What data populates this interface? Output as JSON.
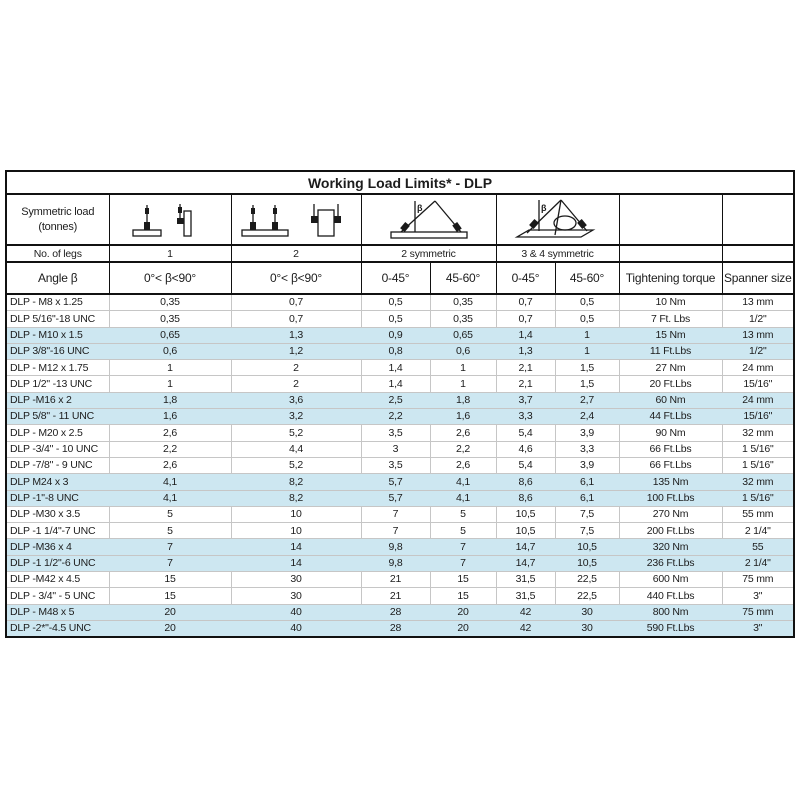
{
  "title": "Working Load Limits* - DLP",
  "header": {
    "load_label_line1": "Symmetric load",
    "load_label_line2": "(tonnes)",
    "legs_row_label": "No. of legs",
    "angle_row_label": "Angle β",
    "legs": {
      "one": "1",
      "two": "2",
      "two_sym": "2 symmetric",
      "three_four_sym": "3 & 4 symmetric"
    },
    "angles": [
      "0°< β<90°",
      "0°< β<90°",
      "0-45°",
      "45-60°",
      "0-45°",
      "45-60°"
    ],
    "torque_label": "Tightening torque",
    "spanner_label": "Spanner size",
    "icons": {
      "one_leg": "one-leg-lifting-point-icon",
      "two_legs": "two-leg-lifting-point-icon",
      "two_symmetric": "two-leg-symmetric-sling-icon",
      "three_four_symmetric": "three-four-leg-symmetric-sling-icon"
    }
  },
  "colors": {
    "highlight_row": "#cde7f1",
    "header_border": "#111111",
    "data_border": "#c6c6c6"
  },
  "rows": [
    {
      "model": "DLP - M8 x 1.25",
      "values": [
        "0,35",
        "0,7",
        "0,5",
        "0,35",
        "0,7",
        "0,5",
        "10 Nm",
        "13 mm"
      ],
      "highlight": false
    },
    {
      "model": "DLP 5/16\"-18 UNC",
      "values": [
        "0,35",
        "0,7",
        "0,5",
        "0,35",
        "0,7",
        "0,5",
        "7 Ft. Lbs",
        "1/2\""
      ],
      "highlight": false
    },
    {
      "model": "DLP - M10 x 1.5",
      "values": [
        "0,65",
        "1,3",
        "0,9",
        "0,65",
        "1,4",
        "1",
        "15 Nm",
        "13 mm"
      ],
      "highlight": true
    },
    {
      "model": "DLP 3/8\"-16 UNC",
      "values": [
        "0,6",
        "1,2",
        "0,8",
        "0,6",
        "1,3",
        "1",
        "11 Ft.Lbs",
        "1/2\""
      ],
      "highlight": true
    },
    {
      "model": "DLP - M12 x 1.75",
      "values": [
        "1",
        "2",
        "1,4",
        "1",
        "2,1",
        "1,5",
        "27 Nm",
        "24 mm"
      ],
      "highlight": false
    },
    {
      "model": "DLP 1/2\" -13 UNC",
      "values": [
        "1",
        "2",
        "1,4",
        "1",
        "2,1",
        "1,5",
        "20 Ft.Lbs",
        "15/16\""
      ],
      "highlight": false
    },
    {
      "model": "DLP -M16 x 2",
      "values": [
        "1,8",
        "3,6",
        "2,5",
        "1,8",
        "3,7",
        "2,7",
        "60 Nm",
        "24 mm"
      ],
      "highlight": true
    },
    {
      "model": "DLP 5/8\" - 11 UNC",
      "values": [
        "1,6",
        "3,2",
        "2,2",
        "1,6",
        "3,3",
        "2,4",
        "44 Ft.Lbs",
        "15/16\""
      ],
      "highlight": true
    },
    {
      "model": "DLP - M20 x 2.5",
      "values": [
        "2,6",
        "5,2",
        "3,5",
        "2,6",
        "5,4",
        "3,9",
        "90 Nm",
        "32 mm"
      ],
      "highlight": false
    },
    {
      "model": "DLP -3/4\" - 10 UNC",
      "values": [
        "2,2",
        "4,4",
        "3",
        "2,2",
        "4,6",
        "3,3",
        "66 Ft.Lbs",
        "1 5/16\""
      ],
      "highlight": false
    },
    {
      "model": "DLP -7/8\" - 9 UNC",
      "values": [
        "2,6",
        "5,2",
        "3,5",
        "2,6",
        "5,4",
        "3,9",
        "66 Ft.Lbs",
        "1 5/16\""
      ],
      "highlight": false
    },
    {
      "model": "DLP M24 x 3",
      "values": [
        "4,1",
        "8,2",
        "5,7",
        "4,1",
        "8,6",
        "6,1",
        "135 Nm",
        "32 mm"
      ],
      "highlight": true
    },
    {
      "model": "DLP -1\"-8 UNC",
      "values": [
        "4,1",
        "8,2",
        "5,7",
        "4,1",
        "8,6",
        "6,1",
        "100 Ft.Lbs",
        "1 5/16\""
      ],
      "highlight": true
    },
    {
      "model": "DLP -M30 x 3.5",
      "values": [
        "5",
        "10",
        "7",
        "5",
        "10,5",
        "7,5",
        "270 Nm",
        "55 mm"
      ],
      "highlight": false
    },
    {
      "model": "DLP -1 1/4\"-7 UNC",
      "values": [
        "5",
        "10",
        "7",
        "5",
        "10,5",
        "7,5",
        "200 Ft.Lbs",
        "2 1/4\""
      ],
      "highlight": false
    },
    {
      "model": "DLP -M36 x 4",
      "values": [
        "7",
        "14",
        "9,8",
        "7",
        "14,7",
        "10,5",
        "320 Nm",
        "55"
      ],
      "highlight": true
    },
    {
      "model": "DLP -1 1/2\"-6 UNC",
      "values": [
        "7",
        "14",
        "9,8",
        "7",
        "14,7",
        "10,5",
        "236 Ft.Lbs",
        "2 1/4\""
      ],
      "highlight": true
    },
    {
      "model": "DLP -M42 x 4.5",
      "values": [
        "15",
        "30",
        "21",
        "15",
        "31,5",
        "22,5",
        "600 Nm",
        "75 mm"
      ],
      "highlight": false
    },
    {
      "model": "DLP - 3/4\" - 5 UNC",
      "values": [
        "15",
        "30",
        "21",
        "15",
        "31,5",
        "22,5",
        "440 Ft.Lbs",
        "3\""
      ],
      "highlight": false
    },
    {
      "model": "DLP - M48 x 5",
      "values": [
        "20",
        "40",
        "28",
        "20",
        "42",
        "30",
        "800 Nm",
        "75 mm"
      ],
      "highlight": true
    },
    {
      "model": "DLP -2*\"-4.5 UNC",
      "values": [
        "20",
        "40",
        "28",
        "20",
        "42",
        "30",
        "590 Ft.Lbs",
        "3\""
      ],
      "highlight": true
    }
  ]
}
